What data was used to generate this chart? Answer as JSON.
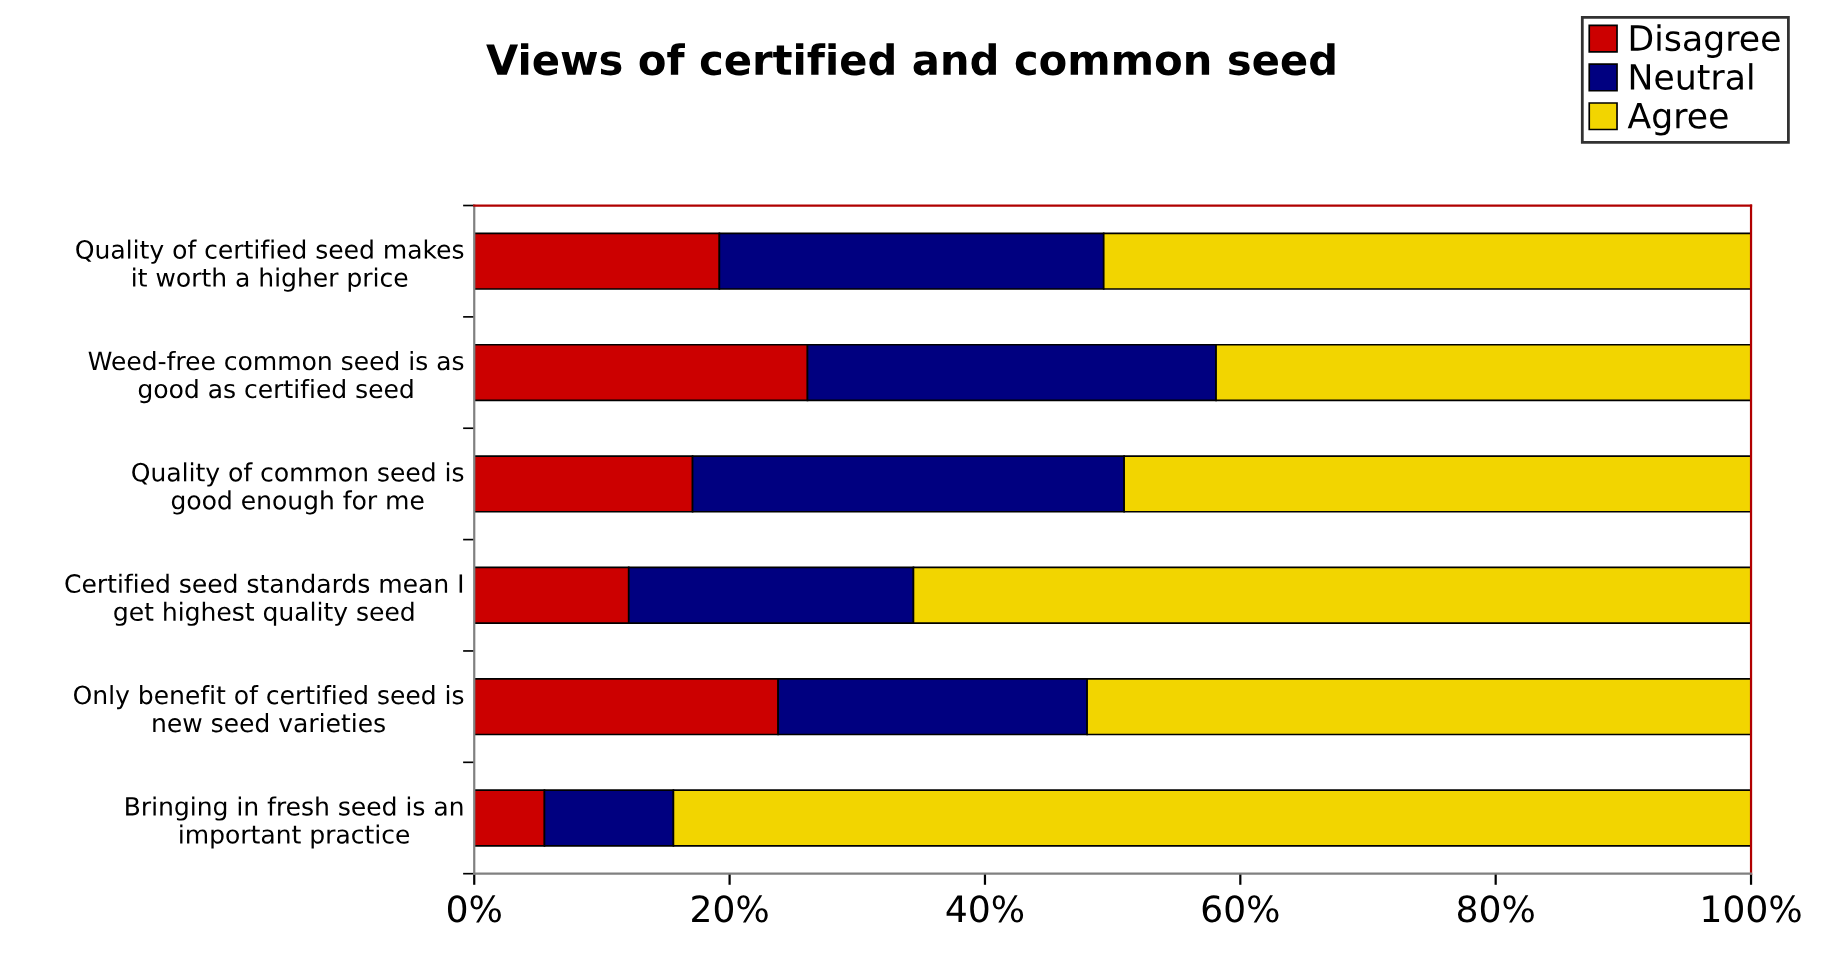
{
  "chart_data": {
    "type": "bar",
    "orientation": "horizontal",
    "stacked": true,
    "title": "Views of certified and common seed",
    "categories": [
      "Quality of certified seed makes\nit worth a higher price",
      "Weed-free common seed is as\ngood as certified seed",
      "Quality of common seed is\ngood enough for me",
      "Certified seed standards mean I\nget highest quality seed",
      "Only benefit of certified seed is\nnew seed varieties",
      "Bringing in fresh seed is an\nimportant practice"
    ],
    "series": [
      {
        "name": "Disagree",
        "color": "#cc0000",
        "values": [
          19.2,
          26.1,
          17.1,
          12.1,
          23.8,
          5.5
        ]
      },
      {
        "name": "Neutral",
        "color": "#000080",
        "values": [
          30.1,
          32.0,
          33.8,
          22.3,
          24.2,
          10.1
        ]
      },
      {
        "name": "Agree",
        "color": "#f2d500",
        "values": [
          50.7,
          41.9,
          49.1,
          65.6,
          52.0,
          84.4
        ]
      }
    ],
    "xlim": [
      0,
      100
    ],
    "xticks": [
      {
        "value": 0,
        "label": "0%"
      },
      {
        "value": 20,
        "label": "20%"
      },
      {
        "value": 40,
        "label": "40%"
      },
      {
        "value": 60,
        "label": "60%"
      },
      {
        "value": 80,
        "label": "80%"
      },
      {
        "value": 100,
        "label": "100%"
      }
    ],
    "grid": false,
    "legend": "top right"
  }
}
